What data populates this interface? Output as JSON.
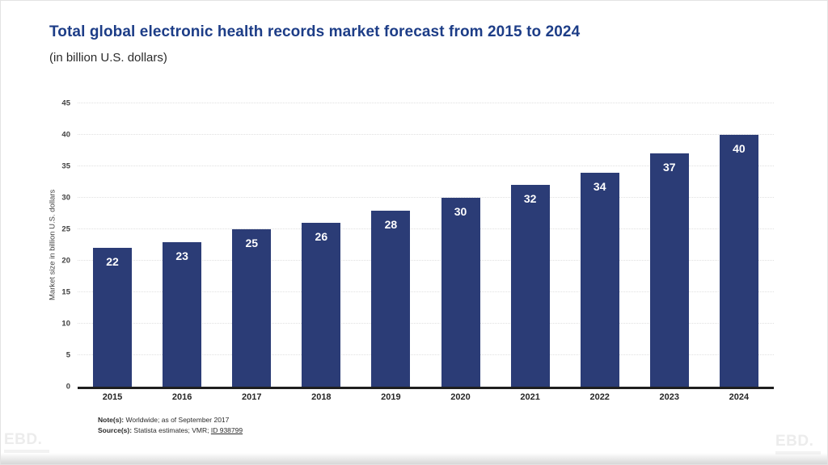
{
  "header": {
    "title": "Total global electronic health records market forecast from 2015 to 2024",
    "subtitle": "(in billion U.S. dollars)"
  },
  "chart_data": {
    "type": "bar",
    "title": "Total global electronic health records market forecast from 2015 to 2024",
    "subtitle": "(in billion U.S. dollars)",
    "categories": [
      "2015",
      "2016",
      "2017",
      "2018",
      "2019",
      "2020",
      "2021",
      "2022",
      "2023",
      "2024"
    ],
    "values": [
      22,
      23,
      25,
      26,
      28,
      30,
      32,
      34,
      37,
      40
    ],
    "xlabel": "",
    "ylabel": "Market size in billion U.S. dollars",
    "ylim": [
      0,
      45
    ],
    "yticks": [
      0,
      5,
      10,
      15,
      20,
      25,
      30,
      35,
      40,
      45
    ],
    "grid": "horizontal-dotted",
    "legend": "none",
    "bar_color": "#2b3c76",
    "value_label_color": "#ffffff"
  },
  "notes": {
    "note_label": "Note(s):",
    "note_text": "Worldwide; as of September 2017",
    "source_label": "Source(s):",
    "source_text": "Statista estimates; VMR;",
    "source_link": "ID 938799"
  },
  "watermark": "EBD.",
  "colors": {
    "title_blue": "#1d3d87",
    "bar_navy": "#2b3c76",
    "axis_black": "#1f1f1f",
    "gridline_gray": "#e0e0e0"
  }
}
